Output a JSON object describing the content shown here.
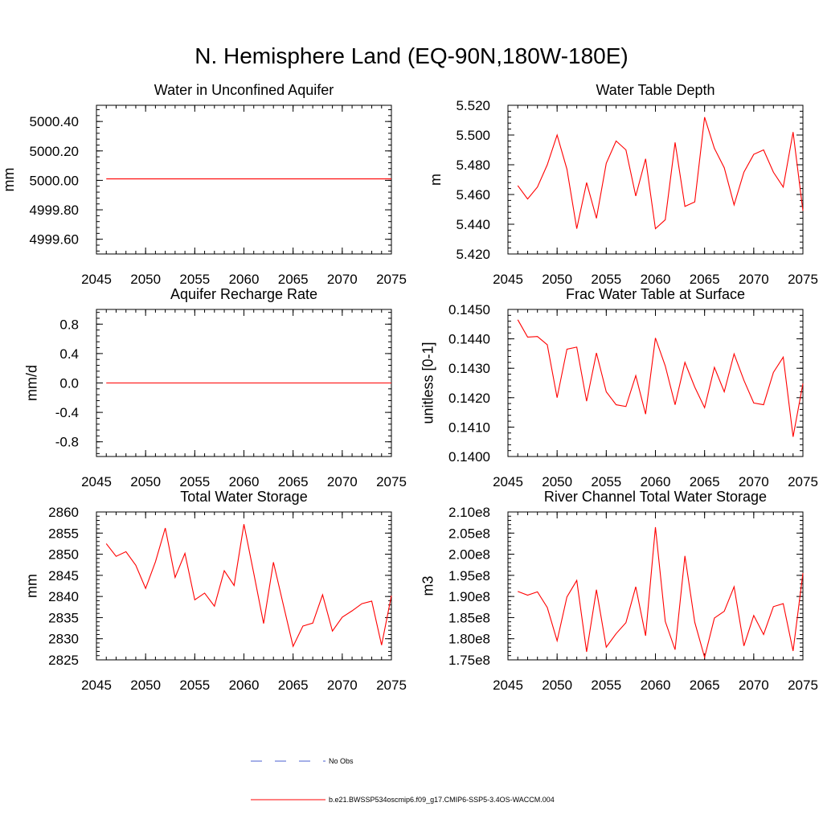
{
  "title": "N. Hemisphere Land (EQ-90N,180W-180E)",
  "legend": [
    {
      "label": "No Obs",
      "color": "#4a5fd0",
      "style": "dashed"
    },
    {
      "label": "b.e21.BWSSP534oscmip6.f09_g17.CMIP6-SSP5-3.4OS-WACCM.004",
      "color": "#ff0000",
      "style": "solid"
    }
  ],
  "chart_data": [
    {
      "type": "line",
      "title": "Water in Unconfined Aquifer",
      "ylabel": "mm",
      "xlim": [
        2045,
        2075
      ],
      "ylim": [
        4999.5,
        5000.51
      ],
      "xticks": [
        2045,
        2050,
        2055,
        2060,
        2065,
        2070,
        2075
      ],
      "yticks": [
        4999.6,
        4999.8,
        5000.0,
        5000.2,
        5000.4
      ],
      "ytick_labels": [
        "4999.60",
        "4999.80",
        "5000.00",
        "5000.20",
        "5000.40"
      ],
      "series": [
        {
          "color": "#ff0000",
          "x": [
            2046,
            2047,
            2048,
            2049,
            2050,
            2051,
            2052,
            2053,
            2054,
            2055,
            2056,
            2057,
            2058,
            2059,
            2060,
            2061,
            2062,
            2063,
            2064,
            2065,
            2066,
            2067,
            2068,
            2069,
            2070,
            2071,
            2072,
            2073,
            2074,
            2075
          ],
          "y": [
            5000.01,
            5000.01,
            5000.01,
            5000.01,
            5000.01,
            5000.01,
            5000.01,
            5000.01,
            5000.01,
            5000.01,
            5000.01,
            5000.01,
            5000.01,
            5000.01,
            5000.01,
            5000.01,
            5000.01,
            5000.01,
            5000.01,
            5000.01,
            5000.01,
            5000.01,
            5000.01,
            5000.01,
            5000.01,
            5000.01,
            5000.01,
            5000.01,
            5000.01,
            5000.01
          ]
        }
      ]
    },
    {
      "type": "line",
      "title": "Water Table Depth",
      "ylabel": "m",
      "xlim": [
        2045,
        2075
      ],
      "ylim": [
        5.42,
        5.52
      ],
      "xticks": [
        2045,
        2050,
        2055,
        2060,
        2065,
        2070,
        2075
      ],
      "yticks": [
        5.42,
        5.44,
        5.46,
        5.48,
        5.5,
        5.52
      ],
      "ytick_labels": [
        "5.420",
        "5.440",
        "5.460",
        "5.480",
        "5.500",
        "5.520"
      ],
      "series": [
        {
          "color": "#ff0000",
          "x": [
            2046,
            2047,
            2048,
            2049,
            2050,
            2051,
            2052,
            2053,
            2054,
            2055,
            2056,
            2057,
            2058,
            2059,
            2060,
            2061,
            2062,
            2063,
            2064,
            2065,
            2066,
            2067,
            2068,
            2069,
            2070,
            2071,
            2072,
            2073,
            2074,
            2075
          ],
          "y": [
            5.466,
            5.457,
            5.465,
            5.48,
            5.5,
            5.477,
            5.437,
            5.468,
            5.444,
            5.481,
            5.496,
            5.49,
            5.459,
            5.484,
            5.437,
            5.443,
            5.495,
            5.452,
            5.455,
            5.512,
            5.491,
            5.478,
            5.453,
            5.475,
            5.487,
            5.49,
            5.475,
            5.465,
            5.502,
            5.449
          ]
        }
      ]
    },
    {
      "type": "line",
      "title": "Aquifer Recharge Rate",
      "ylabel": "mm/d",
      "xlim": [
        2045,
        2075
      ],
      "ylim": [
        -1.0,
        1.0
      ],
      "xticks": [
        2045,
        2050,
        2055,
        2060,
        2065,
        2070,
        2075
      ],
      "yticks": [
        -0.8,
        -0.4,
        0.0,
        0.4,
        0.8
      ],
      "ytick_labels": [
        "-0.8",
        "-0.4",
        "0.0",
        "0.4",
        "0.8"
      ],
      "series": [
        {
          "color": "#ff0000",
          "x": [
            2046,
            2047,
            2048,
            2049,
            2050,
            2051,
            2052,
            2053,
            2054,
            2055,
            2056,
            2057,
            2058,
            2059,
            2060,
            2061,
            2062,
            2063,
            2064,
            2065,
            2066,
            2067,
            2068,
            2069,
            2070,
            2071,
            2072,
            2073,
            2074,
            2075
          ],
          "y": [
            0,
            0,
            0,
            0,
            0,
            0,
            0,
            0,
            0,
            0,
            0,
            0,
            0,
            0,
            0,
            0,
            0,
            0,
            0,
            0,
            0,
            0,
            0,
            0,
            0,
            0,
            0,
            0,
            0,
            0
          ]
        }
      ]
    },
    {
      "type": "line",
      "title": "Frac Water Table at Surface",
      "ylabel": "unitless [0-1]",
      "xlim": [
        2045,
        2075
      ],
      "ylim": [
        0.14,
        0.145
      ],
      "xticks": [
        2045,
        2050,
        2055,
        2060,
        2065,
        2070,
        2075
      ],
      "yticks": [
        0.14,
        0.141,
        0.142,
        0.143,
        0.144,
        0.145
      ],
      "ytick_labels": [
        "0.1400",
        "0.1410",
        "0.1420",
        "0.1430",
        "0.1440",
        "0.1450"
      ],
      "series": [
        {
          "color": "#ff0000",
          "x": [
            2046,
            2047,
            2048,
            2049,
            2050,
            2051,
            2052,
            2053,
            2054,
            2055,
            2056,
            2057,
            2058,
            2059,
            2060,
            2061,
            2062,
            2063,
            2064,
            2065,
            2066,
            2067,
            2068,
            2069,
            2070,
            2071,
            2072,
            2073,
            2074,
            2075
          ],
          "y": [
            0.14465,
            0.14406,
            0.14408,
            0.1438,
            0.142,
            0.14365,
            0.14372,
            0.14188,
            0.14352,
            0.1422,
            0.14176,
            0.1417,
            0.14275,
            0.14144,
            0.14403,
            0.14308,
            0.14176,
            0.1432,
            0.14236,
            0.14166,
            0.14303,
            0.1422,
            0.14349,
            0.14259,
            0.14182,
            0.14176,
            0.14286,
            0.14338,
            0.14067,
            0.14248
          ]
        }
      ]
    },
    {
      "type": "line",
      "title": "Total Water Storage",
      "ylabel": "mm",
      "xlim": [
        2045,
        2075
      ],
      "ylim": [
        2825,
        2860
      ],
      "xticks": [
        2045,
        2050,
        2055,
        2060,
        2065,
        2070,
        2075
      ],
      "yticks": [
        2825,
        2830,
        2835,
        2840,
        2845,
        2850,
        2855,
        2860
      ],
      "ytick_labels": [
        "2825",
        "2830",
        "2835",
        "2840",
        "2845",
        "2850",
        "2855",
        "2860"
      ],
      "series": [
        {
          "color": "#ff0000",
          "x": [
            2046,
            2047,
            2048,
            2049,
            2050,
            2051,
            2052,
            2053,
            2054,
            2055,
            2056,
            2057,
            2058,
            2059,
            2060,
            2061,
            2062,
            2063,
            2064,
            2065,
            2066,
            2067,
            2068,
            2069,
            2070,
            2071,
            2072,
            2073,
            2074,
            2075
          ],
          "y": [
            2852.5,
            2849.5,
            2850.6,
            2847.4,
            2841.9,
            2848.2,
            2856.2,
            2844.5,
            2850.2,
            2839.2,
            2840.8,
            2837.7,
            2846.1,
            2842.6,
            2857.1,
            2845.5,
            2833.6,
            2848.1,
            2838.1,
            2828.2,
            2833.0,
            2833.7,
            2840.4,
            2831.8,
            2835.1,
            2836.6,
            2838.3,
            2838.9,
            2828.5,
            2840.2
          ]
        }
      ]
    },
    {
      "type": "line",
      "title": "River Channel Total Water Storage",
      "ylabel": "m3",
      "xlim": [
        2045,
        2075
      ],
      "ylim": [
        175000000,
        210000000
      ],
      "xticks": [
        2045,
        2050,
        2055,
        2060,
        2065,
        2070,
        2075
      ],
      "yticks": [
        175000000,
        180000000,
        185000000,
        190000000,
        195000000,
        200000000,
        205000000,
        210000000
      ],
      "ytick_labels": [
        "1.75e8",
        "1.80e8",
        "1.85e8",
        "1.90e8",
        "1.95e8",
        "2.00e8",
        "2.05e8",
        "2.10e8"
      ],
      "series": [
        {
          "color": "#ff0000",
          "x": [
            2046,
            2047,
            2048,
            2049,
            2050,
            2051,
            2052,
            2053,
            2054,
            2055,
            2056,
            2057,
            2058,
            2059,
            2060,
            2061,
            2062,
            2063,
            2064,
            2065,
            2066,
            2067,
            2068,
            2069,
            2070,
            2071,
            2072,
            2073,
            2074,
            2075
          ],
          "y": [
            191200000,
            190300000,
            191100000,
            187400000,
            179500000,
            189900000,
            193800000,
            176900000,
            191600000,
            178000000,
            181200000,
            183800000,
            192300000,
            180700000,
            206400000,
            184100000,
            177400000,
            199600000,
            183900000,
            175600000,
            184900000,
            186500000,
            192300000,
            178300000,
            185500000,
            181000000,
            187600000,
            188300000,
            177100000,
            195500000
          ]
        }
      ]
    }
  ]
}
